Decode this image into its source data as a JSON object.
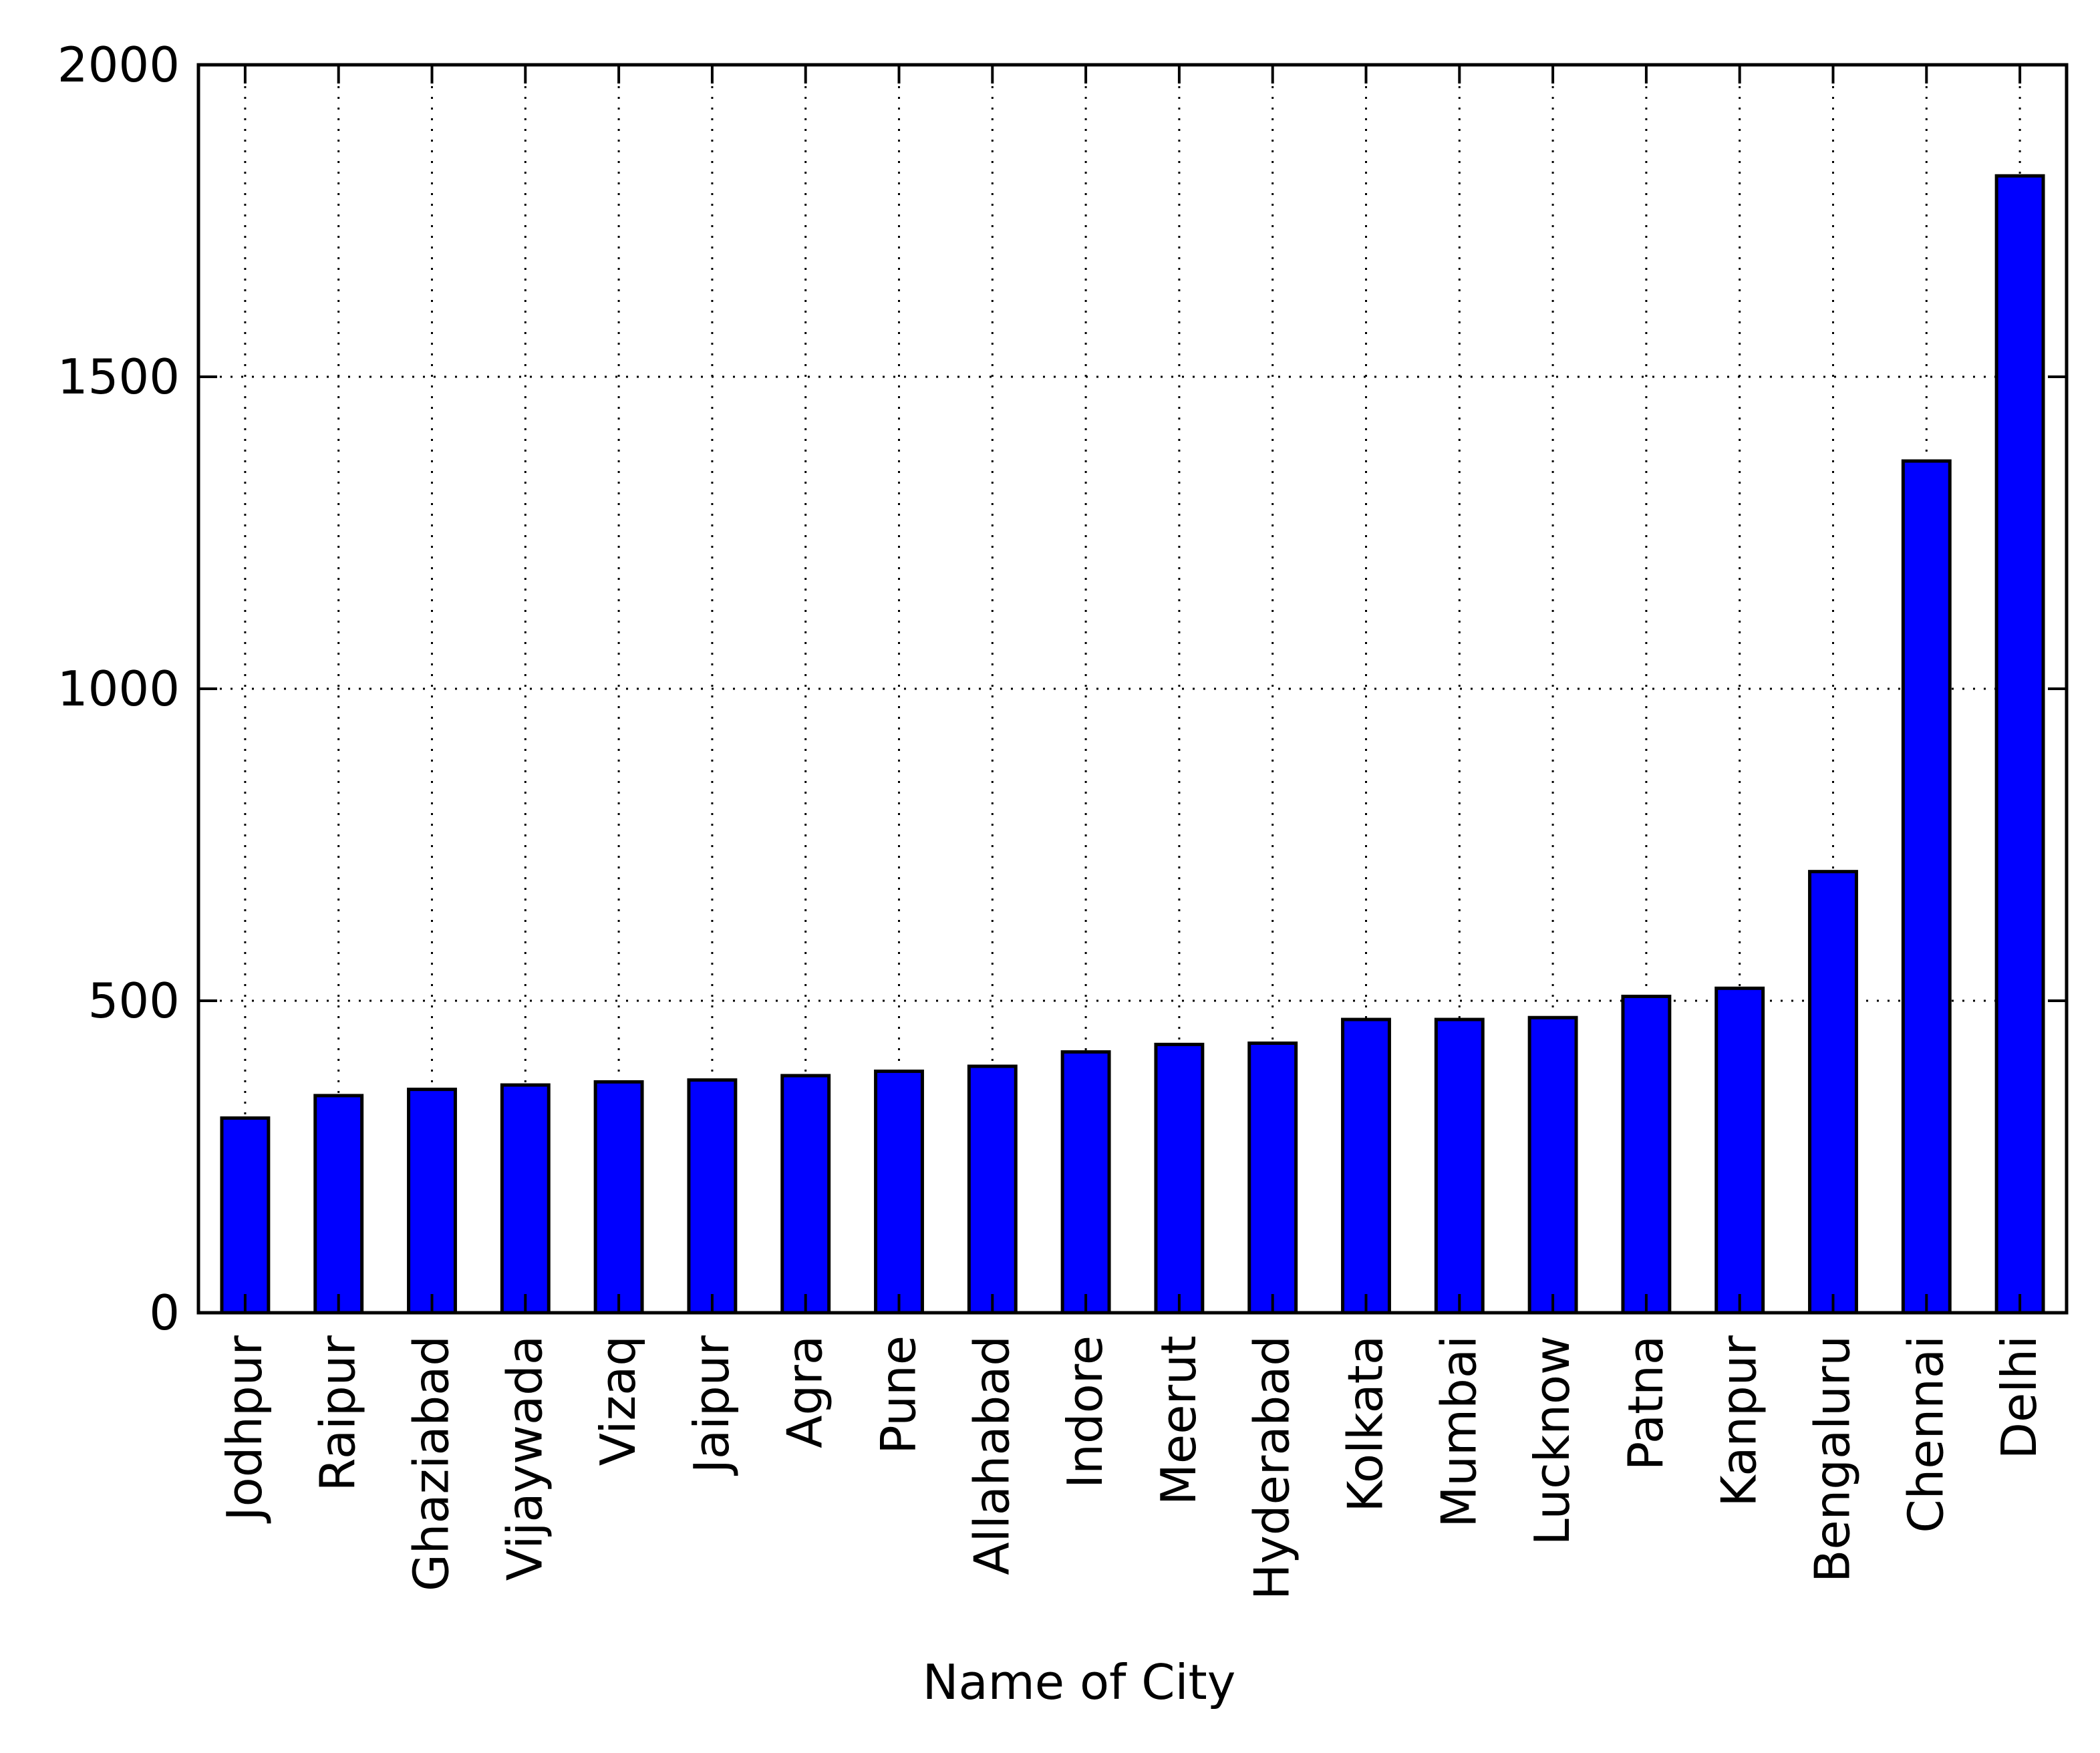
{
  "chart_data": {
    "type": "bar",
    "title": "",
    "xlabel": "Name of City",
    "ylabel": "",
    "ylim": [
      0,
      2000
    ],
    "yticks": [
      "0",
      "500",
      "1000",
      "1500",
      "2000"
    ],
    "grid": true,
    "categories": [
      "Jodhpur",
      "Raipur",
      "Ghaziabad",
      "Vijaywada",
      "Vizaq",
      "Jaipur",
      "Agra",
      "Pune",
      "Allahabad",
      "Indore",
      "Meerut",
      "Hyderabad",
      "Kolkata",
      "Mumbai",
      "Lucknow",
      "Patna",
      "Kanpur",
      "Bengaluru",
      "Chennai",
      "Delhi"
    ],
    "values": [
      312,
      348,
      358,
      365,
      370,
      373,
      380,
      387,
      395,
      418,
      430,
      432,
      470,
      470,
      473,
      507,
      520,
      707,
      1365,
      1822
    ],
    "bar_color": "#0000ff",
    "edge_color": "#000000"
  }
}
